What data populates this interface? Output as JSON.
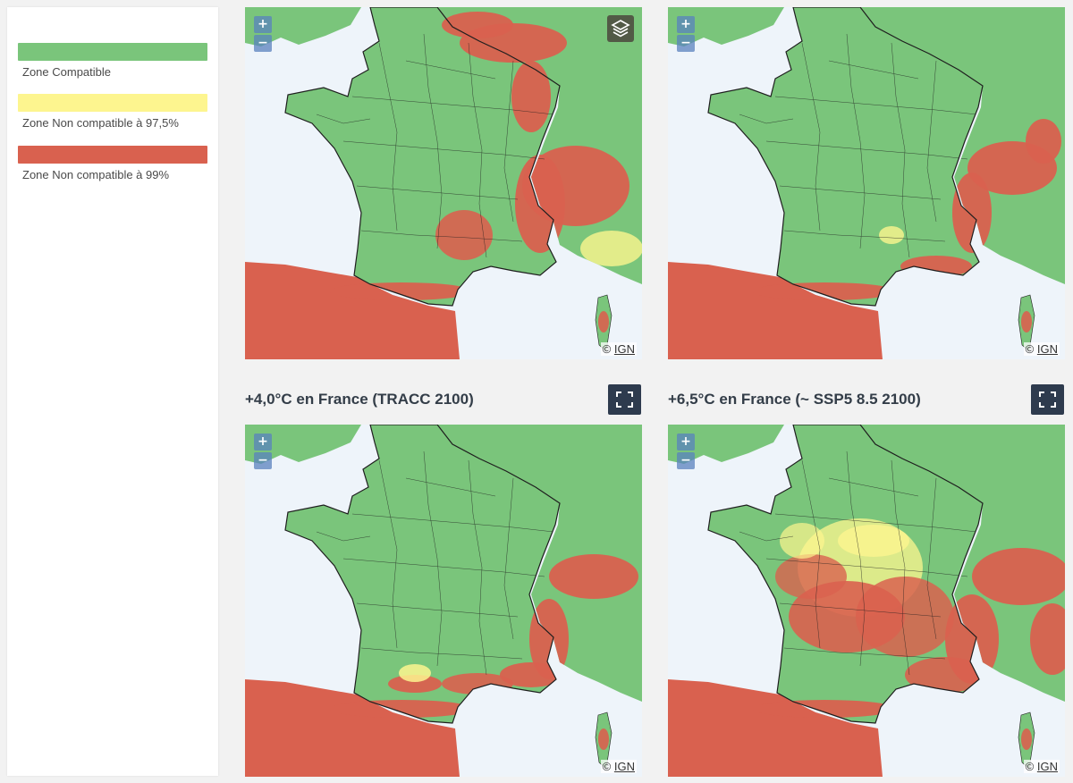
{
  "legend": {
    "items": [
      {
        "label": "Zone Compatible",
        "color": "#7ac57b"
      },
      {
        "label": "Zone Non compatible à 97,5%",
        "color": "#fdf58f"
      },
      {
        "label": "Zone Non compatible à 99%",
        "color": "#d9614f"
      }
    ]
  },
  "colors": {
    "sea": "#eef4fa",
    "compatible": "#7ac57b",
    "partial": "#fdf58f",
    "incompatible": "#d9614f",
    "border": "#1e1e1e",
    "button_dark": "#2e3b4e"
  },
  "maps": [
    {
      "title": "",
      "attribution_prefix": "©",
      "attribution_link": "IGN",
      "zoom_in": "+",
      "zoom_out": "−",
      "has_layer_switcher": true,
      "has_fullscreen": false
    },
    {
      "title": "",
      "attribution_prefix": "©",
      "attribution_link": "IGN",
      "zoom_in": "+",
      "zoom_out": "−",
      "has_layer_switcher": false,
      "has_fullscreen": false
    },
    {
      "title": "+4,0°C en France (TRACC 2100)",
      "attribution_prefix": "©",
      "attribution_link": "IGN",
      "zoom_in": "+",
      "zoom_out": "−",
      "has_layer_switcher": false,
      "has_fullscreen": true,
      "fullscreen_icon": "fullscreen-icon"
    },
    {
      "title": "+6,5°C en France (~ SSP5 8.5 2100)",
      "attribution_prefix": "©",
      "attribution_link": "IGN",
      "zoom_in": "+",
      "zoom_out": "−",
      "has_layer_switcher": false,
      "has_fullscreen": true,
      "fullscreen_icon": "fullscreen-icon"
    }
  ]
}
